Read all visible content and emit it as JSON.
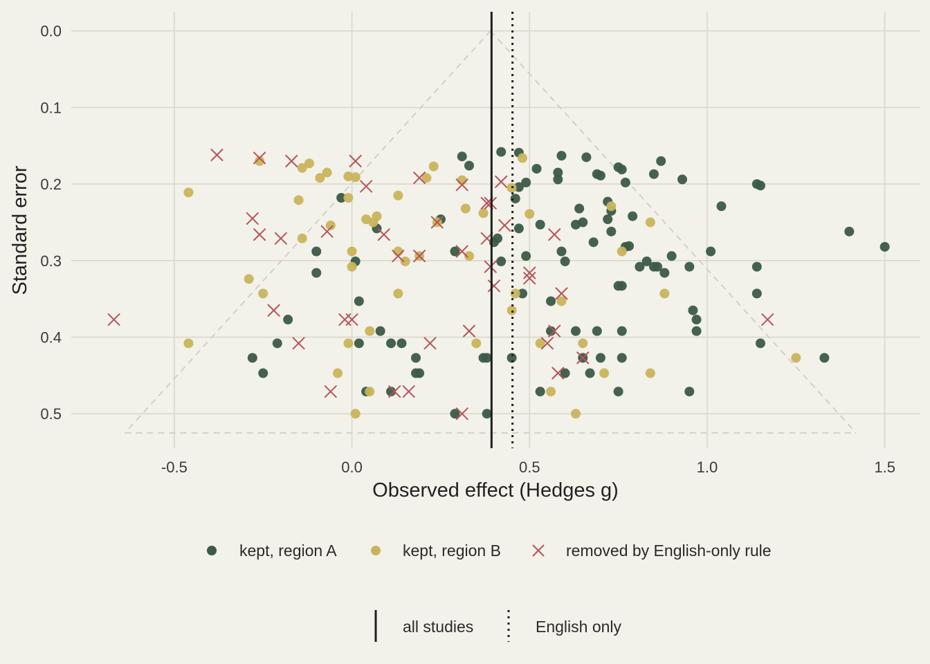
{
  "chart_data": {
    "type": "scatter",
    "title": "",
    "xlabel": "Observed effect (Hedges g)",
    "ylabel": "Standard error",
    "xlim": [
      -0.79,
      1.6
    ],
    "ylim": [
      -0.025,
      0.545
    ],
    "y_reversed": true,
    "grid": true,
    "x_ticks": [
      {
        "value": -0.5,
        "label": "-0.5"
      },
      {
        "value": 0.0,
        "label": "0.0"
      },
      {
        "value": 0.5,
        "label": "0.5"
      },
      {
        "value": 1.0,
        "label": "1.0"
      },
      {
        "value": 1.5,
        "label": "1.5"
      }
    ],
    "y_ticks": [
      {
        "value": 0.0,
        "label": "0.0"
      },
      {
        "value": 0.1,
        "label": "0.1"
      },
      {
        "value": 0.2,
        "label": "0.2"
      },
      {
        "value": 0.3,
        "label": "0.3"
      },
      {
        "value": 0.4,
        "label": "0.4"
      },
      {
        "value": 0.5,
        "label": "0.5"
      }
    ],
    "funnel": {
      "center": 0.39,
      "se_max": 0.525,
      "color": "#d2d1c6"
    },
    "reference_lines": [
      {
        "name": "all studies",
        "x": 0.393,
        "style": "solid",
        "color": "#1c1f1c"
      },
      {
        "name": "English only",
        "x": 0.452,
        "style": "dotted",
        "color": "#1c1f1c"
      }
    ],
    "legend": {
      "position": "bottom",
      "points": [
        "kept, region A",
        "kept, region B",
        "removed by English-only rule"
      ],
      "lines": [
        "all studies",
        "English only"
      ]
    },
    "series": [
      {
        "name": "kept, region A",
        "marker": "circle",
        "color": "#3b5a47",
        "points": [
          [
            0.42,
            0.158
          ],
          [
            0.47,
            0.159
          ],
          [
            0.31,
            0.164
          ],
          [
            0.59,
            0.163
          ],
          [
            0.66,
            0.165
          ],
          [
            0.87,
            0.17
          ],
          [
            0.33,
            0.176
          ],
          [
            0.75,
            0.178
          ],
          [
            0.52,
            0.18
          ],
          [
            0.76,
            0.181
          ],
          [
            0.58,
            0.185
          ],
          [
            0.69,
            0.187
          ],
          [
            0.85,
            0.187
          ],
          [
            0.7,
            0.189
          ],
          [
            0.58,
            0.194
          ],
          [
            0.93,
            0.194
          ],
          [
            0.49,
            0.198
          ],
          [
            0.77,
            0.198
          ],
          [
            1.14,
            0.2
          ],
          [
            1.15,
            0.202
          ],
          [
            0.47,
            0.204
          ],
          [
            -0.03,
            0.218
          ],
          [
            0.46,
            0.219
          ],
          [
            0.72,
            0.223
          ],
          [
            1.04,
            0.229
          ],
          [
            0.64,
            0.232
          ],
          [
            0.73,
            0.235
          ],
          [
            0.79,
            0.242
          ],
          [
            0.25,
            0.246
          ],
          [
            0.72,
            0.246
          ],
          [
            0.65,
            0.25
          ],
          [
            0.53,
            0.253
          ],
          [
            0.63,
            0.253
          ],
          [
            0.07,
            0.258
          ],
          [
            0.47,
            0.258
          ],
          [
            1.4,
            0.262
          ],
          [
            0.73,
            0.262
          ],
          [
            0.41,
            0.271
          ],
          [
            0.4,
            0.276
          ],
          [
            0.68,
            0.276
          ],
          [
            0.78,
            0.281
          ],
          [
            0.77,
            0.282
          ],
          [
            1.5,
            0.282
          ],
          [
            -0.1,
            0.288
          ],
          [
            0.29,
            0.288
          ],
          [
            0.59,
            0.288
          ],
          [
            1.01,
            0.288
          ],
          [
            0.49,
            0.294
          ],
          [
            0.9,
            0.294
          ],
          [
            0.42,
            0.301
          ],
          [
            0.6,
            0.301
          ],
          [
            0.01,
            0.301
          ],
          [
            0.83,
            0.301
          ],
          [
            0.81,
            0.308
          ],
          [
            0.85,
            0.308
          ],
          [
            0.86,
            0.308
          ],
          [
            0.95,
            0.308
          ],
          [
            1.14,
            0.308
          ],
          [
            -0.1,
            0.316
          ],
          [
            0.88,
            0.316
          ],
          [
            0.75,
            0.333
          ],
          [
            0.76,
            0.333
          ],
          [
            0.48,
            0.343
          ],
          [
            1.14,
            0.343
          ],
          [
            0.56,
            0.353
          ],
          [
            0.02,
            0.353
          ],
          [
            0.96,
            0.365
          ],
          [
            0.97,
            0.377
          ],
          [
            -0.18,
            0.377
          ],
          [
            0.56,
            0.392
          ],
          [
            0.08,
            0.392
          ],
          [
            0.63,
            0.392
          ],
          [
            0.69,
            0.392
          ],
          [
            0.76,
            0.392
          ],
          [
            0.97,
            0.392
          ],
          [
            -0.21,
            0.408
          ],
          [
            0.02,
            0.408
          ],
          [
            0.11,
            0.408
          ],
          [
            0.14,
            0.408
          ],
          [
            1.15,
            0.408
          ],
          [
            -0.28,
            0.427
          ],
          [
            0.18,
            0.427
          ],
          [
            0.37,
            0.427
          ],
          [
            0.38,
            0.427
          ],
          [
            0.45,
            0.427
          ],
          [
            0.65,
            0.427
          ],
          [
            0.7,
            0.427
          ],
          [
            0.76,
            0.427
          ],
          [
            1.33,
            0.427
          ],
          [
            -0.25,
            0.447
          ],
          [
            0.18,
            0.447
          ],
          [
            0.19,
            0.447
          ],
          [
            0.6,
            0.447
          ],
          [
            0.67,
            0.447
          ],
          [
            0.04,
            0.471
          ],
          [
            0.11,
            0.471
          ],
          [
            0.53,
            0.471
          ],
          [
            0.75,
            0.471
          ],
          [
            0.95,
            0.471
          ],
          [
            0.29,
            0.5
          ],
          [
            0.38,
            0.5
          ]
        ]
      },
      {
        "name": "kept, region B",
        "marker": "circle",
        "color": "#c9b45b",
        "points": [
          [
            0.48,
            0.166
          ],
          [
            -0.26,
            0.17
          ],
          [
            -0.12,
            0.173
          ],
          [
            0.23,
            0.177
          ],
          [
            -0.14,
            0.179
          ],
          [
            -0.07,
            0.185
          ],
          [
            -0.01,
            0.19
          ],
          [
            0.01,
            0.191
          ],
          [
            -0.09,
            0.192
          ],
          [
            0.21,
            0.192
          ],
          [
            0.31,
            0.195
          ],
          [
            0.45,
            0.205
          ],
          [
            -0.46,
            0.211
          ],
          [
            0.13,
            0.215
          ],
          [
            -0.01,
            0.218
          ],
          [
            -0.15,
            0.221
          ],
          [
            0.73,
            0.229
          ],
          [
            0.32,
            0.232
          ],
          [
            0.5,
            0.239
          ],
          [
            0.37,
            0.238
          ],
          [
            0.07,
            0.242
          ],
          [
            0.04,
            0.246
          ],
          [
            0.06,
            0.25
          ],
          [
            0.24,
            0.25
          ],
          [
            0.84,
            0.25
          ],
          [
            -0.06,
            0.254
          ],
          [
            -0.14,
            0.271
          ],
          [
            0.0,
            0.288
          ],
          [
            0.13,
            0.288
          ],
          [
            0.76,
            0.288
          ],
          [
            0.33,
            0.294
          ],
          [
            0.19,
            0.294
          ],
          [
            0.15,
            0.301
          ],
          [
            0.0,
            0.308
          ],
          [
            -0.29,
            0.324
          ],
          [
            -0.25,
            0.343
          ],
          [
            0.13,
            0.343
          ],
          [
            0.46,
            0.343
          ],
          [
            0.88,
            0.343
          ],
          [
            0.59,
            0.353
          ],
          [
            0.45,
            0.365
          ],
          [
            0.05,
            0.392
          ],
          [
            -0.46,
            0.408
          ],
          [
            -0.01,
            0.408
          ],
          [
            0.35,
            0.408
          ],
          [
            0.53,
            0.408
          ],
          [
            0.65,
            0.408
          ],
          [
            1.25,
            0.427
          ],
          [
            -0.04,
            0.447
          ],
          [
            0.71,
            0.447
          ],
          [
            0.84,
            0.447
          ],
          [
            0.05,
            0.471
          ],
          [
            0.56,
            0.471
          ],
          [
            0.01,
            0.5
          ],
          [
            0.63,
            0.5
          ]
        ]
      },
      {
        "name": "removed by English-only rule",
        "marker": "x",
        "color": "#b5555a",
        "points": [
          [
            -0.38,
            0.162
          ],
          [
            -0.26,
            0.166
          ],
          [
            -0.17,
            0.17
          ],
          [
            0.01,
            0.17
          ],
          [
            0.19,
            0.192
          ],
          [
            0.42,
            0.197
          ],
          [
            0.04,
            0.203
          ],
          [
            0.31,
            0.201
          ],
          [
            0.38,
            0.225
          ],
          [
            0.39,
            0.225
          ],
          [
            -0.28,
            0.245
          ],
          [
            0.24,
            0.25
          ],
          [
            0.43,
            0.254
          ],
          [
            -0.07,
            0.262
          ],
          [
            -0.26,
            0.266
          ],
          [
            0.09,
            0.266
          ],
          [
            0.57,
            0.266
          ],
          [
            -0.2,
            0.271
          ],
          [
            0.38,
            0.271
          ],
          [
            0.31,
            0.288
          ],
          [
            0.13,
            0.294
          ],
          [
            0.19,
            0.294
          ],
          [
            0.39,
            0.308
          ],
          [
            0.5,
            0.316
          ],
          [
            0.5,
            0.323
          ],
          [
            0.4,
            0.333
          ],
          [
            0.59,
            0.343
          ],
          [
            -0.22,
            0.365
          ],
          [
            -0.02,
            0.377
          ],
          [
            0.0,
            0.377
          ],
          [
            -0.67,
            0.377
          ],
          [
            1.17,
            0.377
          ],
          [
            0.33,
            0.392
          ],
          [
            0.57,
            0.392
          ],
          [
            -0.15,
            0.408
          ],
          [
            0.22,
            0.408
          ],
          [
            0.55,
            0.408
          ],
          [
            0.65,
            0.427
          ],
          [
            0.58,
            0.447
          ],
          [
            -0.06,
            0.471
          ],
          [
            0.12,
            0.471
          ],
          [
            0.16,
            0.471
          ],
          [
            0.31,
            0.5
          ]
        ]
      }
    ]
  }
}
